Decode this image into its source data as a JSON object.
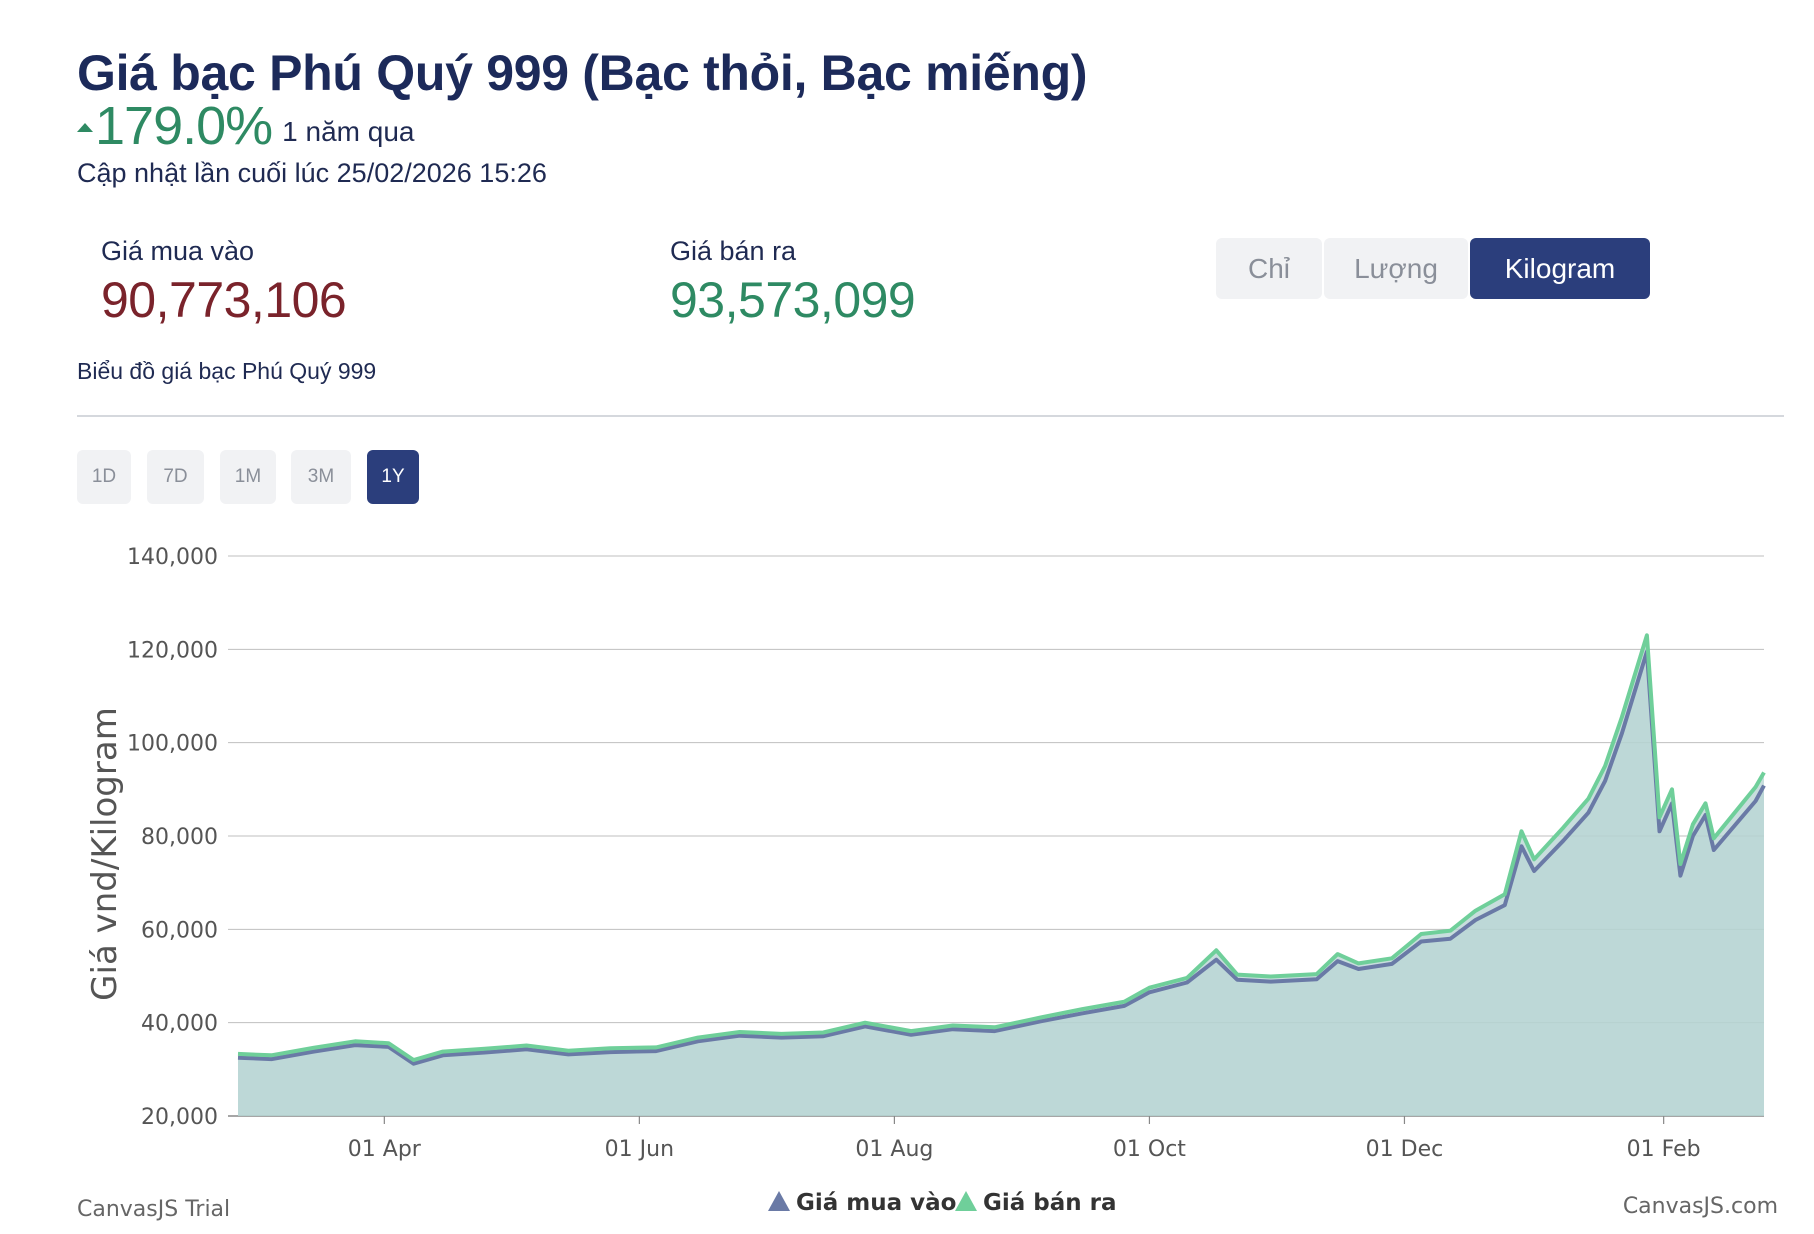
{
  "header": {
    "title": "Giá bạc Phú Quý 999 (Bạc thỏi, Bạc miếng)",
    "change": "179.0%",
    "change_period": "1 năm qua",
    "updated": "Cập nhật lần cuối lúc 25/02/2026 15:26"
  },
  "prices": {
    "buy_label": "Giá mua vào",
    "buy_value": "90,773,106",
    "sell_label": "Giá bán ra",
    "sell_value": "93,573,099"
  },
  "unit_tabs": [
    {
      "label": "Chỉ",
      "active": false
    },
    {
      "label": "Lượng",
      "active": false
    },
    {
      "label": "Kilogram",
      "active": true
    }
  ],
  "chart_caption": "Biểu đồ giá bạc Phú Quý 999",
  "range_tabs": [
    {
      "label": "1D",
      "active": false
    },
    {
      "label": "7D",
      "active": false
    },
    {
      "label": "1M",
      "active": false
    },
    {
      "label": "3M",
      "active": false
    },
    {
      "label": "1Y",
      "active": true
    }
  ],
  "colors": {
    "buy": "#6a7aa6",
    "sell": "#6fcf9a",
    "area": "#b5d3d2",
    "accent": "#2b3e7c",
    "up": "#2e8a63"
  },
  "chart_data": {
    "type": "area",
    "title": "",
    "xlabel": "",
    "ylabel": "Giá vnd/Kilogram",
    "ylim": [
      20000,
      140000
    ],
    "xlim": [
      "2025-02-25",
      "2026-02-25"
    ],
    "y_ticks": [
      "20,000",
      "40,000",
      "60,000",
      "80,000",
      "100,000",
      "120,000",
      "140,000"
    ],
    "x_ticks": [
      {
        "date": "2025-04-01",
        "label": "01 Apr"
      },
      {
        "date": "2025-06-01",
        "label": "01 Jun"
      },
      {
        "date": "2025-08-01",
        "label": "01 Aug"
      },
      {
        "date": "2025-10-01",
        "label": "01 Oct"
      },
      {
        "date": "2025-12-01",
        "label": "01 Dec"
      },
      {
        "date": "2026-02-01",
        "label": "01 Feb"
      }
    ],
    "grid": true,
    "legend_position": "bottom-center",
    "series": [
      {
        "name": "Giá mua vào",
        "points": [
          [
            "2025-02-25",
            32500
          ],
          [
            "2025-03-05",
            32200
          ],
          [
            "2025-03-15",
            33800
          ],
          [
            "2025-03-25",
            35200
          ],
          [
            "2025-04-02",
            34800
          ],
          [
            "2025-04-08",
            31200
          ],
          [
            "2025-04-15",
            33000
          ],
          [
            "2025-04-25",
            33600
          ],
          [
            "2025-05-05",
            34300
          ],
          [
            "2025-05-15",
            33200
          ],
          [
            "2025-05-25",
            33700
          ],
          [
            "2025-06-05",
            33900
          ],
          [
            "2025-06-15",
            36000
          ],
          [
            "2025-06-25",
            37200
          ],
          [
            "2025-07-05",
            36800
          ],
          [
            "2025-07-15",
            37100
          ],
          [
            "2025-07-25",
            39200
          ],
          [
            "2025-08-05",
            37400
          ],
          [
            "2025-08-15",
            38600
          ],
          [
            "2025-08-25",
            38200
          ],
          [
            "2025-09-05",
            40300
          ],
          [
            "2025-09-15",
            42000
          ],
          [
            "2025-09-25",
            43600
          ],
          [
            "2025-10-01",
            46500
          ],
          [
            "2025-10-10",
            48600
          ],
          [
            "2025-10-17",
            53500
          ],
          [
            "2025-10-22",
            49200
          ],
          [
            "2025-10-30",
            48800
          ],
          [
            "2025-11-10",
            49300
          ],
          [
            "2025-11-15",
            53200
          ],
          [
            "2025-11-20",
            51500
          ],
          [
            "2025-11-28",
            52600
          ],
          [
            "2025-12-05",
            57400
          ],
          [
            "2025-12-12",
            58000
          ],
          [
            "2025-12-18",
            62000
          ],
          [
            "2025-12-25",
            65200
          ],
          [
            "2025-12-29",
            77800
          ],
          [
            "2026-01-01",
            72500
          ],
          [
            "2026-01-08",
            79000
          ],
          [
            "2026-01-14",
            85000
          ],
          [
            "2026-01-18",
            91800
          ],
          [
            "2026-01-22",
            102000
          ],
          [
            "2026-01-28",
            119500
          ],
          [
            "2026-01-31",
            81000
          ],
          [
            "2026-02-03",
            87000
          ],
          [
            "2026-02-05",
            71500
          ],
          [
            "2026-02-08",
            80000
          ],
          [
            "2026-02-11",
            84500
          ],
          [
            "2026-02-13",
            77000
          ],
          [
            "2026-02-23",
            87500
          ],
          [
            "2026-02-25",
            90800
          ]
        ]
      },
      {
        "name": "Giá bán ra",
        "points": [
          [
            "2025-02-25",
            33300
          ],
          [
            "2025-03-05",
            33000
          ],
          [
            "2025-03-15",
            34600
          ],
          [
            "2025-03-25",
            36000
          ],
          [
            "2025-04-02",
            35600
          ],
          [
            "2025-04-08",
            32000
          ],
          [
            "2025-04-15",
            33800
          ],
          [
            "2025-04-25",
            34400
          ],
          [
            "2025-05-05",
            35100
          ],
          [
            "2025-05-15",
            34000
          ],
          [
            "2025-05-25",
            34500
          ],
          [
            "2025-06-05",
            34700
          ],
          [
            "2025-06-15",
            36800
          ],
          [
            "2025-06-25",
            38000
          ],
          [
            "2025-07-05",
            37600
          ],
          [
            "2025-07-15",
            37900
          ],
          [
            "2025-07-25",
            40000
          ],
          [
            "2025-08-05",
            38200
          ],
          [
            "2025-08-15",
            39400
          ],
          [
            "2025-08-25",
            39000
          ],
          [
            "2025-09-05",
            41100
          ],
          [
            "2025-09-15",
            42900
          ],
          [
            "2025-09-25",
            44500
          ],
          [
            "2025-10-01",
            47500
          ],
          [
            "2025-10-10",
            49600
          ],
          [
            "2025-10-17",
            55500
          ],
          [
            "2025-10-22",
            50300
          ],
          [
            "2025-10-30",
            49900
          ],
          [
            "2025-11-10",
            50400
          ],
          [
            "2025-11-15",
            54700
          ],
          [
            "2025-11-20",
            52700
          ],
          [
            "2025-11-28",
            53800
          ],
          [
            "2025-12-05",
            59000
          ],
          [
            "2025-12-12",
            59700
          ],
          [
            "2025-12-18",
            64000
          ],
          [
            "2025-12-25",
            67500
          ],
          [
            "2025-12-29",
            81000
          ],
          [
            "2026-01-01",
            75000
          ],
          [
            "2026-01-08",
            81800
          ],
          [
            "2026-01-14",
            88000
          ],
          [
            "2026-01-18",
            95000
          ],
          [
            "2026-01-22",
            105500
          ],
          [
            "2026-01-28",
            123000
          ],
          [
            "2026-01-31",
            84000
          ],
          [
            "2026-02-03",
            90000
          ],
          [
            "2026-02-05",
            74000
          ],
          [
            "2026-02-08",
            82500
          ],
          [
            "2026-02-11",
            87000
          ],
          [
            "2026-02-13",
            79500
          ],
          [
            "2026-02-23",
            90500
          ],
          [
            "2026-02-25",
            93600
          ]
        ]
      }
    ]
  },
  "credits": {
    "left": "CanvasJS Trial",
    "right": "CanvasJS.com"
  }
}
